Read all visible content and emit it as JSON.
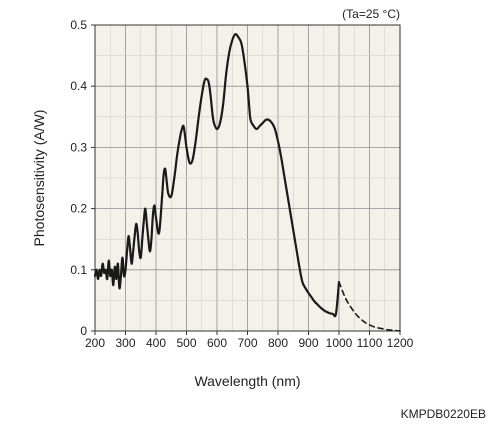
{
  "chart_data": {
    "type": "line",
    "title": "",
    "xlabel": "Wavelength (nm)",
    "ylabel": "Photosensitivity (A/W)",
    "xlim": [
      200,
      1200
    ],
    "ylim": [
      0,
      0.5
    ],
    "x_ticks": [
      200,
      300,
      400,
      500,
      600,
      700,
      800,
      900,
      1000,
      1100,
      1200
    ],
    "y_ticks": [
      0,
      0.1,
      0.2,
      0.3,
      0.4,
      0.5
    ],
    "x_tick_labels": [
      "200",
      "300",
      "400",
      "500",
      "600",
      "700",
      "800",
      "900",
      "1000",
      "1100",
      "1200"
    ],
    "y_tick_labels": [
      "0",
      "0.1",
      "0.2",
      "0.3",
      "0.4",
      "0.5"
    ],
    "grid": true,
    "legend": "none",
    "plot_background": "#f3f2ea",
    "line_color": "#1a1a1a",
    "condition_note": "(Ta=25 °C)",
    "series": [
      {
        "style": "solid",
        "x": [
          200,
          205,
          210,
          215,
          220,
          225,
          230,
          235,
          240,
          245,
          250,
          255,
          260,
          265,
          270,
          275,
          280,
          285,
          290,
          295,
          300,
          305,
          310,
          315,
          320,
          325,
          330,
          335,
          340,
          345,
          350,
          355,
          360,
          365,
          370,
          375,
          380,
          385,
          390,
          395,
          400,
          410,
          420,
          425,
          430,
          435,
          440,
          450,
          460,
          470,
          480,
          485,
          490,
          495,
          500,
          510,
          520,
          530,
          540,
          550,
          560,
          570,
          575,
          580,
          585,
          590,
          600,
          610,
          620,
          630,
          640,
          650,
          660,
          670,
          680,
          690,
          700,
          705,
          710,
          720,
          730,
          740,
          750,
          760,
          770,
          780,
          790,
          800,
          810,
          820,
          830,
          840,
          850,
          860,
          870,
          880,
          890,
          900,
          910,
          920,
          930,
          940,
          950,
          960,
          970,
          980,
          990,
          1000
        ],
        "y": [
          0.09,
          0.1,
          0.085,
          0.1,
          0.09,
          0.11,
          0.095,
          0.1,
          0.085,
          0.115,
          0.09,
          0.1,
          0.075,
          0.105,
          0.085,
          0.11,
          0.07,
          0.09,
          0.12,
          0.09,
          0.1,
          0.13,
          0.155,
          0.135,
          0.11,
          0.13,
          0.155,
          0.175,
          0.16,
          0.13,
          0.12,
          0.15,
          0.18,
          0.2,
          0.175,
          0.15,
          0.13,
          0.15,
          0.19,
          0.205,
          0.185,
          0.16,
          0.22,
          0.255,
          0.265,
          0.245,
          0.225,
          0.22,
          0.25,
          0.29,
          0.32,
          0.33,
          0.335,
          0.32,
          0.3,
          0.275,
          0.28,
          0.31,
          0.35,
          0.385,
          0.41,
          0.41,
          0.4,
          0.38,
          0.355,
          0.34,
          0.33,
          0.34,
          0.37,
          0.42,
          0.455,
          0.475,
          0.485,
          0.48,
          0.47,
          0.44,
          0.4,
          0.37,
          0.345,
          0.335,
          0.33,
          0.335,
          0.34,
          0.345,
          0.345,
          0.34,
          0.33,
          0.31,
          0.285,
          0.255,
          0.225,
          0.195,
          0.165,
          0.135,
          0.105,
          0.08,
          0.07,
          0.062,
          0.055,
          0.048,
          0.043,
          0.038,
          0.034,
          0.031,
          0.029,
          0.028,
          0.028,
          0.08
        ]
      },
      {
        "style": "dashed",
        "x": [
          1000,
          1020,
          1040,
          1060,
          1080,
          1100,
          1120,
          1140,
          1160,
          1180,
          1200
        ],
        "y": [
          0.08,
          0.055,
          0.038,
          0.025,
          0.016,
          0.01,
          0.006,
          0.004,
          0.002,
          0.001,
          0.0
        ]
      }
    ]
  },
  "footer": {
    "code": "KMPDB0220EB"
  }
}
